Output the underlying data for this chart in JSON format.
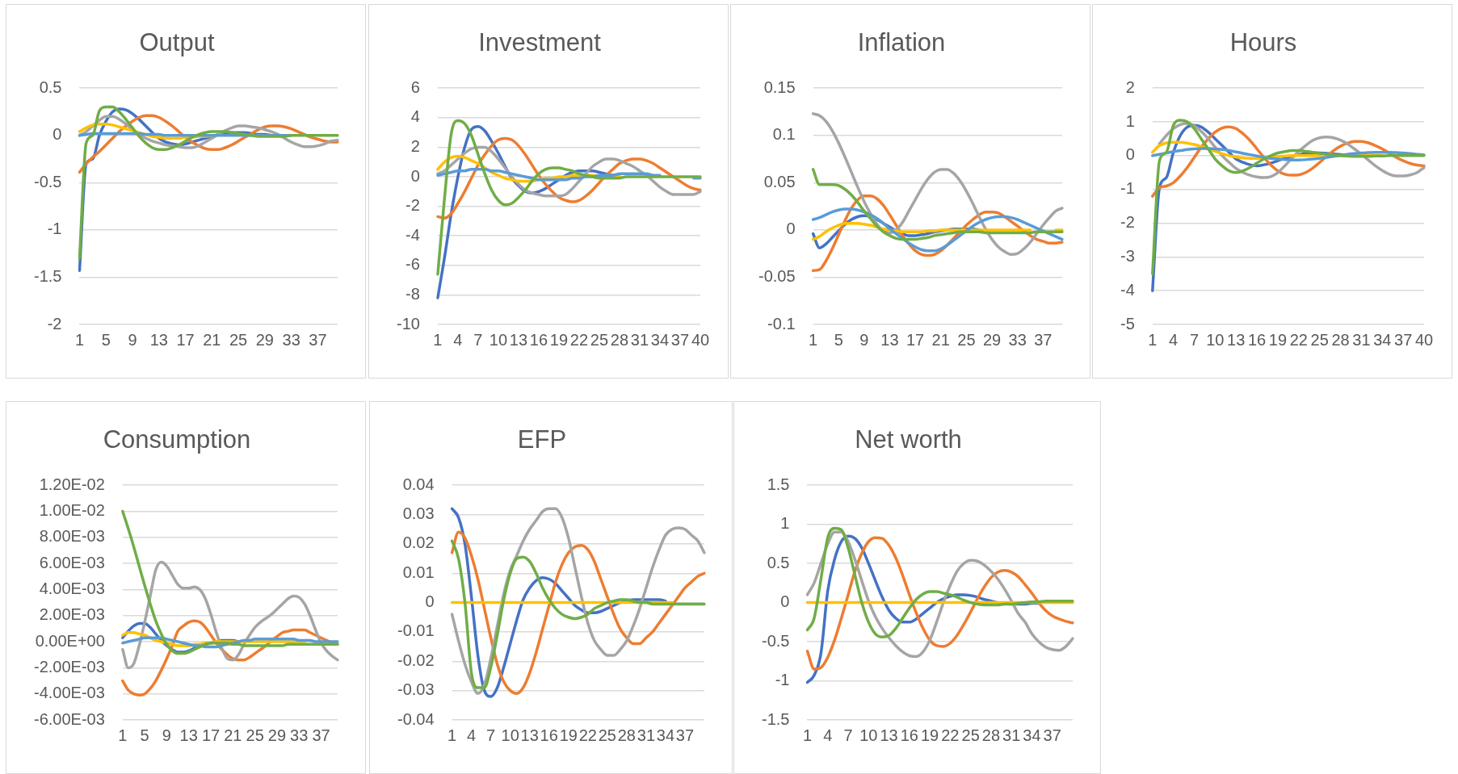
{
  "chart_data": [
    {
      "type": "line",
      "title": "Output",
      "categories": [
        "1",
        null,
        null,
        null,
        "5",
        null,
        null,
        null,
        "9",
        null,
        null,
        null,
        "13",
        null,
        null,
        null,
        "17",
        null,
        null,
        null,
        "21",
        null,
        null,
        null,
        "25",
        null,
        null,
        null,
        "29",
        null,
        null,
        null,
        "33",
        null,
        null,
        null,
        "37",
        null,
        null,
        null
      ],
      "ylim": [
        -2,
        0.5
      ],
      "yticks": [
        -2,
        -1.5,
        -1,
        -0.5,
        0,
        0.5
      ],
      "grid": "y",
      "marker": "none",
      "series": [
        {
          "color": "#4472c4",
          "values": [
            -1.43,
            -0.3,
            -0.25,
            0,
            0.15,
            0.25,
            0.28,
            0.27,
            0.23,
            0.17,
            0.1,
            0.03,
            -0.03,
            -0.07,
            -0.09,
            -0.1,
            -0.09,
            -0.07,
            -0.05,
            -0.03,
            -0.01,
            0.01,
            0.02,
            0.03,
            0.03,
            0.03,
            0.02,
            0.01,
            0.01,
            0,
            null,
            null,
            null,
            null,
            null,
            null,
            null,
            null,
            null,
            null
          ]
        },
        {
          "color": "#ed7d31",
          "values": [
            -0.39,
            -0.3,
            -0.23,
            -0.17,
            -0.1,
            -0.03,
            0.04,
            0.1,
            0.15,
            0.19,
            0.21,
            0.21,
            0.19,
            0.15,
            0.1,
            0.04,
            -0.02,
            -0.07,
            -0.11,
            -0.14,
            -0.15,
            -0.15,
            -0.13,
            -0.1,
            -0.06,
            -0.02,
            0.02,
            0.06,
            0.09,
            0.1,
            0.1,
            0.09,
            0.07,
            0.04,
            0.01,
            -0.02,
            -0.04,
            -0.06,
            -0.07,
            -0.07
          ]
        },
        {
          "color": "#a5a5a5",
          "values": [
            0,
            0.04,
            0.1,
            0.16,
            0.2,
            0.2,
            0.17,
            0.12,
            0.06,
            0.01,
            -0.03,
            -0.06,
            -0.08,
            -0.1,
            -0.11,
            -0.12,
            -0.13,
            -0.13,
            -0.11,
            -0.07,
            -0.03,
            0.01,
            0.05,
            0.08,
            0.1,
            0.1,
            0.09,
            0.08,
            0.06,
            0.04,
            0.01,
            -0.03,
            -0.07,
            -0.1,
            -0.12,
            -0.12,
            -0.11,
            -0.09,
            -0.06,
            -0.05
          ]
        },
        {
          "color": "#ffc000",
          "values": [
            0.04,
            0.08,
            0.11,
            0.12,
            0.12,
            0.11,
            0.09,
            0.07,
            0.05,
            0.03,
            0.01,
            -0.01,
            -0.02,
            -0.03,
            -0.03,
            -0.03,
            -0.02,
            -0.02,
            -0.01,
            -0.01,
            0,
            null,
            null,
            null,
            null,
            null,
            null,
            null,
            null,
            null,
            null,
            null,
            null,
            null,
            null,
            null,
            null,
            null,
            null,
            null
          ]
        },
        {
          "color": "#5b9bd5",
          "values": [
            0,
            0.01,
            0.02,
            0.02,
            0.02,
            0.02,
            0.02,
            0.02,
            0.02,
            0.02,
            0.01,
            0.01,
            0.01,
            0,
            0,
            0,
            0,
            0,
            0,
            0,
            0,
            0,
            0,
            0,
            0,
            0,
            0,
            0,
            0,
            0,
            0,
            0,
            0,
            null,
            null,
            null,
            null,
            null,
            null,
            null
          ]
        },
        {
          "color": "#70ad47",
          "values": [
            -1.3,
            -0.08,
            0,
            0.26,
            0.3,
            0.3,
            0.25,
            0.17,
            0.08,
            -0.01,
            -0.08,
            -0.13,
            -0.15,
            -0.15,
            -0.13,
            -0.1,
            -0.06,
            -0.02,
            0.01,
            0.03,
            0.04,
            0.04,
            0.04,
            0.03,
            0.02,
            0.01,
            0,
            -0.01,
            -0.01,
            -0.01,
            -0.01,
            -0.01,
            0,
            0,
            0,
            0,
            0,
            0,
            0,
            0
          ]
        }
      ]
    },
    {
      "type": "line",
      "title": "Investment",
      "categories": [
        "1",
        null,
        null,
        "4",
        null,
        null,
        "7",
        null,
        null,
        "10",
        null,
        null,
        "13",
        null,
        null,
        "16",
        null,
        null,
        "19",
        null,
        null,
        "22",
        null,
        null,
        "25",
        null,
        null,
        "28",
        null,
        null,
        "31",
        null,
        null,
        "34",
        null,
        null,
        "37",
        null,
        null,
        "40"
      ],
      "ylim": [
        -10,
        6
      ],
      "yticks": [
        -10,
        -8,
        -6,
        -4,
        -2,
        0,
        2,
        4,
        6
      ],
      "grid": "y",
      "marker": "none",
      "series": [
        {
          "color": "#4472c4",
          "values": [
            -8.2,
            -5.5,
            -2.5,
            0,
            2,
            3.2,
            3.4,
            3.1,
            2.4,
            1.6,
            0.7,
            -0.1,
            -0.6,
            -1,
            -1.1,
            -1,
            -0.8,
            -0.5,
            -0.2,
            0.1,
            0.3,
            0.4,
            0.4,
            0.4,
            0.3,
            0.2,
            0.1,
            0,
            null,
            null,
            null,
            null,
            null,
            null,
            null,
            null,
            null,
            null,
            null,
            null
          ]
        },
        {
          "color": "#ed7d31",
          "values": [
            -2.7,
            -2.8,
            -2.5,
            -1.8,
            -1,
            -0.1,
            0.8,
            1.5,
            2.1,
            2.5,
            2.6,
            2.5,
            2.1,
            1.5,
            0.8,
            0.1,
            -0.5,
            -1,
            -1.4,
            -1.6,
            -1.7,
            -1.6,
            -1.3,
            -0.9,
            -0.4,
            0.1,
            0.5,
            0.9,
            1.1,
            1.2,
            1.2,
            1.1,
            0.9,
            0.6,
            0.3,
            0,
            -0.3,
            -0.6,
            -0.8,
            -0.9
          ]
        },
        {
          "color": "#a5a5a5",
          "values": [
            0.2,
            0.4,
            0.8,
            1.2,
            1.6,
            1.9,
            2,
            2,
            1.7,
            1.2,
            0.6,
            0,
            -0.5,
            -0.9,
            -1.1,
            -1.2,
            -1.3,
            -1.3,
            -1.3,
            -1.2,
            -0.8,
            -0.3,
            0.2,
            0.7,
            1,
            1.2,
            1.2,
            1.1,
            0.9,
            0.7,
            0.4,
            0.1,
            -0.3,
            -0.7,
            -1,
            -1.2,
            -1.2,
            -1.2,
            -1.2,
            -1
          ]
        },
        {
          "color": "#ffc000",
          "values": [
            0.5,
            1,
            1.3,
            1.4,
            1.3,
            1.1,
            0.9,
            0.6,
            0.3,
            0.1,
            -0.1,
            -0.2,
            -0.3,
            -0.3,
            -0.3,
            -0.2,
            -0.1,
            -0.1,
            0,
            0,
            0.1,
            0.1,
            0.1,
            0.1,
            0,
            0,
            0,
            0,
            null,
            null,
            null,
            null,
            null,
            null,
            null,
            null,
            null,
            null,
            null,
            null
          ]
        },
        {
          "color": "#5b9bd5",
          "values": [
            0.1,
            0.2,
            0.3,
            0.4,
            0.4,
            0.5,
            0.5,
            0.5,
            0.4,
            0.4,
            0.3,
            0.2,
            0.1,
            0,
            -0.1,
            -0.2,
            -0.2,
            -0.2,
            -0.2,
            -0.2,
            -0.1,
            -0.1,
            0,
            0,
            0.1,
            0.1,
            0.1,
            0.2,
            0.2,
            0.2,
            0.2,
            0.2,
            0.1,
            0.1,
            null,
            null,
            null,
            null,
            -0.1,
            -0.1
          ]
        },
        {
          "color": "#70ad47",
          "values": [
            -6.6,
            -1.5,
            2.9,
            3.8,
            3.6,
            2.8,
            1.5,
            0.2,
            -0.9,
            -1.6,
            -1.9,
            -1.8,
            -1.4,
            -0.9,
            -0.3,
            0.2,
            0.5,
            0.6,
            0.6,
            0.5,
            0.4,
            0.2,
            0.1,
            0,
            -0.1,
            -0.1,
            -0.1,
            -0.1,
            0,
            0,
            0,
            0,
            0,
            0,
            0,
            0,
            0,
            0,
            0,
            0
          ]
        }
      ]
    },
    {
      "type": "line",
      "title": "Inflation",
      "categories": [
        "1",
        null,
        null,
        null,
        "5",
        null,
        null,
        null,
        "9",
        null,
        null,
        null,
        "13",
        null,
        null,
        null,
        "17",
        null,
        null,
        null,
        "21",
        null,
        null,
        null,
        "25",
        null,
        null,
        null,
        "29",
        null,
        null,
        null,
        "33",
        null,
        null,
        null,
        "37",
        null,
        null,
        null
      ],
      "ylim": [
        -0.1,
        0.15
      ],
      "yticks": [
        -0.1,
        -0.05,
        0,
        0.05,
        0.1,
        0.15
      ],
      "grid": "y",
      "marker": "none",
      "series": [
        {
          "color": "#4472c4",
          "values": [
            -0.004,
            -0.019,
            -0.015,
            -0.008,
            -0.001,
            0.006,
            0.011,
            0.014,
            0.015,
            0.014,
            0.011,
            0.007,
            0.003,
            -0.001,
            -0.004,
            -0.006,
            -0.006,
            -0.005,
            -0.004,
            -0.002,
            -0.001,
            0,
            0.001,
            0.001,
            0.001,
            0.001,
            0,
            null,
            null,
            null,
            null,
            null,
            null,
            null,
            null,
            null,
            null,
            null,
            null,
            null
          ]
        },
        {
          "color": "#ed7d31",
          "values": [
            -0.043,
            -0.042,
            -0.033,
            -0.02,
            -0.005,
            0.01,
            0.023,
            0.032,
            0.036,
            0.036,
            0.033,
            0.026,
            0.016,
            0.005,
            -0.006,
            -0.015,
            -0.022,
            -0.026,
            -0.027,
            -0.026,
            -0.022,
            -0.016,
            -0.009,
            -0.002,
            0.005,
            0.011,
            0.016,
            0.019,
            0.019,
            0.018,
            0.014,
            0.009,
            0.004,
            -0.001,
            -0.006,
            -0.01,
            -0.012,
            -0.014,
            -0.014,
            -0.013
          ]
        },
        {
          "color": "#a5a5a5",
          "values": [
            0.123,
            0.121,
            0.115,
            0.105,
            0.092,
            0.077,
            0.061,
            0.045,
            0.03,
            0.017,
            0.006,
            -0.001,
            -0.003,
            0,
            0.008,
            0.02,
            0.032,
            0.044,
            0.054,
            0.061,
            0.064,
            0.064,
            0.06,
            0.052,
            0.041,
            0.028,
            0.014,
            0.001,
            -0.01,
            -0.018,
            -0.023,
            -0.026,
            -0.025,
            -0.02,
            -0.013,
            -0.004,
            0.005,
            0.013,
            0.02,
            0.023
          ]
        },
        {
          "color": "#ffc000",
          "values": [
            -0.01,
            -0.007,
            -0.002,
            0.002,
            0.005,
            0.007,
            0.007,
            0.007,
            0.006,
            0.005,
            0.003,
            0.001,
            0,
            -0.001,
            -0.002,
            -0.002,
            -0.002,
            -0.002,
            -0.001,
            -0.001,
            0,
            0,
            0,
            0,
            0,
            0,
            0,
            0,
            0,
            0,
            0,
            0,
            0,
            0,
            0,
            null,
            null,
            null,
            0,
            0
          ]
        },
        {
          "color": "#5b9bd5",
          "values": [
            0.011,
            0.013,
            0.016,
            0.019,
            0.021,
            0.022,
            0.022,
            0.021,
            0.019,
            0.016,
            0.012,
            0.007,
            0.001,
            -0.004,
            -0.009,
            -0.014,
            -0.018,
            -0.021,
            -0.022,
            -0.022,
            -0.02,
            -0.016,
            -0.011,
            -0.006,
            -0.001,
            0.004,
            0.008,
            0.011,
            0.013,
            0.014,
            0.014,
            0.013,
            0.011,
            0.008,
            0.005,
            0.002,
            -0.001,
            -0.004,
            -0.007,
            -0.01
          ]
        },
        {
          "color": "#70ad47",
          "values": [
            0.064,
            0.048,
            0.048,
            0.048,
            0.047,
            0.043,
            0.037,
            0.029,
            0.02,
            0.012,
            0.004,
            -0.002,
            -0.006,
            -0.009,
            -0.01,
            -0.01,
            -0.01,
            -0.009,
            -0.008,
            -0.006,
            -0.005,
            -0.004,
            -0.003,
            -0.002,
            -0.002,
            -0.002,
            -0.002,
            -0.003,
            -0.003,
            -0.003,
            -0.003,
            -0.003,
            -0.003,
            -0.003,
            -0.003,
            -0.002,
            -0.002,
            -0.002,
            -0.002,
            -0.002
          ]
        }
      ]
    },
    {
      "type": "line",
      "title": "Hours",
      "categories": [
        "1",
        null,
        null,
        "4",
        null,
        null,
        "7",
        null,
        null,
        "10",
        null,
        null,
        "13",
        null,
        null,
        "16",
        null,
        null,
        "19",
        null,
        null,
        "22",
        null,
        null,
        "25",
        null,
        null,
        "28",
        null,
        null,
        "31",
        null,
        null,
        "34",
        null,
        null,
        "37",
        null,
        null,
        "40"
      ],
      "ylim": [
        -5,
        2
      ],
      "yticks": [
        -5,
        -4,
        -3,
        -2,
        -1,
        0,
        1,
        2
      ],
      "grid": "y",
      "marker": "none",
      "series": [
        {
          "color": "#4472c4",
          "values": [
            -4,
            -0.95,
            -0.65,
            0.1,
            0.6,
            0.85,
            0.9,
            0.85,
            0.7,
            0.5,
            0.3,
            0.1,
            -0.1,
            -0.2,
            -0.27,
            -0.3,
            -0.27,
            -0.22,
            -0.15,
            -0.08,
            -0.02,
            0.03,
            0.06,
            0.08,
            0.08,
            0.07,
            0.05,
            0.03,
            0.02,
            0.01,
            0,
            null,
            null,
            null,
            null,
            null,
            null,
            null,
            null,
            null
          ]
        },
        {
          "color": "#ed7d31",
          "values": [
            -1.2,
            -0.95,
            -0.9,
            -0.8,
            -0.6,
            -0.35,
            -0.05,
            0.25,
            0.5,
            0.7,
            0.82,
            0.85,
            0.8,
            0.65,
            0.45,
            0.2,
            -0.05,
            -0.28,
            -0.45,
            -0.55,
            -0.58,
            -0.57,
            -0.5,
            -0.37,
            -0.2,
            -0.02,
            0.15,
            0.28,
            0.37,
            0.42,
            0.42,
            0.38,
            0.3,
            0.2,
            0.08,
            -0.05,
            -0.15,
            -0.23,
            -0.28,
            -0.3
          ]
        },
        {
          "color": "#a5a5a5",
          "values": [
            null,
            0.35,
            0.6,
            0.8,
            0.92,
            0.95,
            0.88,
            0.72,
            0.5,
            0.25,
            0,
            -0.2,
            -0.38,
            -0.5,
            -0.58,
            -0.63,
            -0.65,
            -0.62,
            -0.5,
            -0.3,
            -0.08,
            0.13,
            0.3,
            0.45,
            0.53,
            0.55,
            0.53,
            0.46,
            0.35,
            0.2,
            0.04,
            -0.13,
            -0.3,
            -0.44,
            -0.55,
            -0.6,
            -0.6,
            -0.57,
            -0.5,
            -0.35
          ]
        },
        {
          "color": "#ffc000",
          "values": [
            0.1,
            0.3,
            0.38,
            0.4,
            0.4,
            0.37,
            0.33,
            0.27,
            0.2,
            0.13,
            0.06,
            0,
            -0.04,
            -0.07,
            -0.08,
            -0.08,
            -0.07,
            -0.05,
            -0.03,
            -0.01,
            0,
            0.01,
            0,
            0,
            0,
            0,
            0,
            0,
            0,
            0,
            0,
            0,
            0,
            0,
            null,
            null,
            null,
            null,
            null,
            null
          ]
        },
        {
          "color": "#5b9bd5",
          "values": [
            0,
            0.04,
            0.08,
            0.12,
            0.15,
            0.18,
            0.2,
            0.21,
            0.21,
            0.2,
            0.18,
            0.15,
            0.11,
            0.07,
            0.03,
            -0.01,
            -0.05,
            -0.08,
            -0.1,
            -0.12,
            -0.13,
            -0.13,
            -0.12,
            -0.1,
            -0.08,
            -0.05,
            -0.02,
            0.01,
            0.04,
            0.06,
            0.08,
            0.09,
            0.1,
            0.1,
            0.1,
            0.09,
            0.08,
            0.06,
            0.04,
            0.02
          ]
        },
        {
          "color": "#70ad47",
          "values": [
            -3.5,
            -0.15,
            0.1,
            0.9,
            1.05,
            1,
            0.8,
            0.5,
            0.2,
            -0.1,
            -0.3,
            -0.45,
            -0.5,
            -0.45,
            -0.35,
            -0.22,
            -0.1,
            0,
            0.08,
            0.12,
            0.15,
            0.15,
            0.13,
            0.1,
            0.07,
            0.04,
            0.02,
            0,
            -0.01,
            -0.02,
            -0.02,
            -0.02,
            -0.01,
            -0.01,
            0,
            0,
            0,
            0,
            0,
            0
          ]
        }
      ]
    },
    {
      "type": "line",
      "title": "Consumption",
      "categories": [
        "1",
        null,
        null,
        null,
        "5",
        null,
        null,
        null,
        "9",
        null,
        null,
        null,
        "13",
        null,
        null,
        null,
        "17",
        null,
        null,
        null,
        "21",
        null,
        null,
        null,
        "25",
        null,
        null,
        null,
        "29",
        null,
        null,
        null,
        "33",
        null,
        null,
        null,
        "37",
        null,
        null,
        null
      ],
      "ylim": [
        -0.006,
        0.012
      ],
      "yticks": [
        {
          "value": -0.006,
          "label": "-6.00E-03"
        },
        {
          "value": -0.004,
          "label": "-4.00E-03"
        },
        {
          "value": -0.002,
          "label": "-2.00E-03"
        },
        {
          "value": 0,
          "label": "0.00E+00"
        },
        {
          "value": 0.002,
          "label": "2.00E-03"
        },
        {
          "value": 0.004,
          "label": "4.00E-03"
        },
        {
          "value": 0.006,
          "label": "6.00E-03"
        },
        {
          "value": 0.008,
          "label": "8.00E-03"
        },
        {
          "value": 0.01,
          "label": "1.00E-02"
        },
        {
          "value": 0.012,
          "label": "1.20E-02"
        }
      ],
      "grid": "y",
      "marker": "none",
      "series": [
        {
          "color": "#4472c4",
          "values": [
            0.0003,
            0.0008,
            0.0012,
            0.0014,
            0.0014,
            0.0011,
            0.0006,
            0.0001,
            -0.0003,
            -0.0006,
            -0.0008,
            -0.0008,
            -0.0007,
            -0.0005,
            -0.0003,
            -0.0002,
            -0.0001,
            0,
            0.0001,
            0.0001,
            0.0001,
            0,
            null,
            null,
            null,
            null,
            null,
            null,
            null,
            null,
            null,
            null,
            null,
            null,
            null,
            null,
            null,
            null,
            null,
            null
          ]
        },
        {
          "color": "#ed7d31",
          "values": [
            -0.003,
            -0.0037,
            -0.004,
            -0.0041,
            -0.004,
            -0.0036,
            -0.003,
            -0.0022,
            -0.0013,
            -0.0003,
            0.0008,
            0.0012,
            0.0015,
            0.0016,
            0.0015,
            0.0011,
            0.0005,
            -0.0001,
            -0.0006,
            -0.001,
            -0.0013,
            -0.0014,
            -0.0014,
            -0.0012,
            -0.0009,
            -0.0006,
            -0.0003,
            0.0001,
            0.0004,
            0.0007,
            0.0008,
            0.0009,
            0.0009,
            0.0009,
            0.0007,
            0.0005,
            0.0003,
            0.0001,
            -0.0001,
            -0.0002
          ]
        },
        {
          "color": "#a5a5a5",
          "values": [
            -0.0006,
            -0.002,
            -0.0017,
            -0.0003,
            0.0015,
            0.0035,
            0.0055,
            0.0061,
            0.0058,
            0.0051,
            0.0044,
            0.0041,
            0.0041,
            0.0042,
            0.004,
            0.0033,
            0.0021,
            0.0007,
            -0.0005,
            -0.0013,
            -0.0014,
            -0.001,
            -0.0002,
            0.0005,
            0.0011,
            0.0015,
            0.0018,
            0.0021,
            0.0025,
            0.0029,
            0.0033,
            0.0035,
            0.0034,
            0.0029,
            0.002,
            0.0009,
            -0.0001,
            -0.0007,
            -0.0011,
            -0.0014
          ]
        },
        {
          "color": "#ffc000",
          "values": [
            0.0005,
            0.0007,
            0.0007,
            0.0006,
            0.0005,
            0.0003,
            0.0001,
            0,
            -0.0001,
            -0.0002,
            -0.0003,
            -0.0003,
            -0.0003,
            -0.0002,
            -0.0002,
            -0.0001,
            -0.0001,
            0,
            0,
            0,
            0,
            0,
            0,
            0,
            0,
            0,
            0,
            0,
            0,
            0,
            0,
            0,
            0,
            0,
            null,
            null,
            null,
            null,
            null,
            null
          ]
        },
        {
          "color": "#5b9bd5",
          "values": [
            -0.0001,
            0,
            0.0001,
            0.0002,
            0.0003,
            0.0003,
            0.0003,
            0.0003,
            0.0002,
            0.0001,
            0,
            -0.0001,
            -0.0002,
            -0.0003,
            -0.0003,
            -0.0004,
            -0.0004,
            -0.0004,
            -0.0003,
            -0.0002,
            -0.0001,
            0,
            0.0001,
            0.0001,
            0.0002,
            0.0002,
            0.0002,
            0.0002,
            0.0002,
            0.0002,
            0.0002,
            0.0002,
            0.0001,
            0.0001,
            0.0001,
            0,
            0,
            0,
            0,
            0
          ]
        },
        {
          "color": "#70ad47",
          "values": [
            0.01,
            0.0087,
            0.0073,
            0.0058,
            0.0043,
            0.0029,
            0.0016,
            0.0006,
            -0.0002,
            -0.0007,
            -0.0009,
            -0.0009,
            -0.0008,
            -0.0006,
            -0.0004,
            -0.0002,
            -0.0001,
            -0.0001,
            -0.0001,
            -0.0001,
            -0.0002,
            -0.0002,
            -0.0003,
            -0.0003,
            -0.0003,
            -0.0003,
            -0.0003,
            -0.0003,
            -0.0003,
            -0.0003,
            -0.0002,
            -0.0002,
            -0.0002,
            -0.0002,
            -0.0002,
            -0.0002,
            -0.0002,
            -0.0002,
            -0.0002,
            -0.0002
          ]
        }
      ]
    },
    {
      "type": "line",
      "title": "EFP",
      "categories": [
        "1",
        null,
        null,
        "4",
        null,
        null,
        "7",
        null,
        null,
        "10",
        null,
        null,
        "13",
        null,
        null,
        "16",
        null,
        null,
        "19",
        null,
        null,
        "22",
        null,
        null,
        "25",
        null,
        null,
        "28",
        null,
        null,
        "31",
        null,
        null,
        "34",
        null,
        null,
        "37",
        null,
        null,
        null
      ],
      "ylim": [
        -0.04,
        0.04
      ],
      "yticks": [
        -0.04,
        -0.03,
        -0.02,
        -0.01,
        0,
        0.01,
        0.02,
        0.03,
        0.04
      ],
      "grid": "y",
      "marker": "none",
      "series": [
        {
          "color": "#4472c4",
          "values": [
            0.032,
            0.029,
            0.02,
            0.002,
            -0.018,
            -0.03,
            -0.032,
            -0.029,
            -0.022,
            -0.014,
            -0.006,
            0.001,
            0.005,
            0.0075,
            0.0085,
            0.008,
            0.0065,
            0.004,
            0.0015,
            -0.001,
            -0.0025,
            -0.0035,
            -0.0035,
            -0.003,
            -0.002,
            -0.001,
            0,
            0.0005,
            0.001,
            0.001,
            0.001,
            0.001,
            0.001,
            0.0005,
            null,
            null,
            null,
            null,
            null,
            null
          ]
        },
        {
          "color": "#ed7d31",
          "values": [
            0.017,
            0.024,
            0.022,
            0.016,
            0.008,
            -0.002,
            -0.012,
            -0.021,
            -0.027,
            -0.03,
            -0.031,
            -0.029,
            -0.024,
            -0.017,
            -0.009,
            -0.001,
            0.007,
            0.013,
            0.017,
            0.019,
            0.0195,
            0.018,
            0.014,
            0.008,
            0.002,
            -0.004,
            -0.009,
            -0.012,
            -0.014,
            -0.014,
            -0.012,
            -0.01,
            -0.007,
            -0.004,
            -0.001,
            0.002,
            0.005,
            0.007,
            0.009,
            0.01
          ]
        },
        {
          "color": "#a5a5a5",
          "values": [
            -0.004,
            -0.013,
            -0.021,
            -0.027,
            -0.031,
            -0.028,
            -0.019,
            -0.008,
            0.003,
            0.011,
            0.016,
            0.021,
            0.025,
            0.028,
            0.031,
            0.032,
            0.032,
            0.029,
            0.022,
            0.012,
            0.002,
            -0.007,
            -0.013,
            -0.016,
            -0.018,
            -0.018,
            -0.016,
            -0.013,
            -0.008,
            -0.002,
            0.005,
            0.012,
            0.018,
            0.023,
            0.025,
            0.0255,
            0.025,
            0.023,
            0.021,
            0.017
          ]
        },
        {
          "color": "#ffc000",
          "values": [
            0,
            0,
            0,
            0,
            0,
            0,
            0,
            0,
            0,
            0,
            0,
            0,
            0,
            0,
            0,
            0,
            0,
            0,
            0,
            0,
            0,
            0,
            0,
            0,
            0,
            0,
            0,
            0,
            0,
            0,
            0,
            0,
            0,
            0,
            0,
            null,
            null,
            null,
            null,
            null
          ]
        },
        {
          "color": "#70ad47",
          "values": [
            0.021,
            0.015,
            0,
            -0.024,
            -0.029,
            -0.029,
            -0.022,
            -0.011,
            0.001,
            0.01,
            0.015,
            0.0155,
            0.014,
            0.01,
            0.005,
            0.001,
            -0.002,
            -0.004,
            -0.005,
            -0.0055,
            -0.005,
            -0.004,
            -0.002,
            -0.001,
            0,
            0.0005,
            0.001,
            0.001,
            0.0005,
            0,
            0,
            -0.0005,
            -0.0005,
            -0.0005,
            -0.0005,
            -0.0005,
            -0.0005,
            -0.0005,
            -0.0005,
            -0.0005
          ]
        }
      ]
    },
    {
      "type": "line",
      "title": "Net worth",
      "categories": [
        "1",
        null,
        null,
        "4",
        null,
        null,
        "7",
        null,
        null,
        "10",
        null,
        null,
        "13",
        null,
        null,
        "16",
        null,
        null,
        "19",
        null,
        null,
        "22",
        null,
        null,
        "25",
        null,
        null,
        "28",
        null,
        null,
        "31",
        null,
        null,
        "34",
        null,
        null,
        "37",
        null,
        null,
        null
      ],
      "ylim": [
        -1.5,
        1.5
      ],
      "yticks": [
        -1.5,
        -1,
        -0.5,
        0,
        0.5,
        1,
        1.5
      ],
      "grid": "y",
      "marker": "none",
      "series": [
        {
          "color": "#4472c4",
          "values": [
            -1.02,
            -0.93,
            -0.65,
            0.15,
            0.55,
            0.78,
            0.85,
            0.82,
            0.7,
            0.5,
            0.28,
            0.07,
            -0.1,
            -0.2,
            -0.25,
            -0.25,
            -0.21,
            -0.14,
            -0.07,
            0,
            0.05,
            0.08,
            0.1,
            0.1,
            0.09,
            0.07,
            0.04,
            0.02,
            0,
            -0.01,
            -0.02,
            -0.02,
            -0.02,
            -0.01,
            -0.01,
            null,
            null,
            null,
            null,
            null
          ]
        },
        {
          "color": "#ed7d31",
          "values": [
            -0.62,
            -0.85,
            -0.83,
            -0.7,
            -0.48,
            -0.2,
            0.1,
            0.4,
            0.63,
            0.78,
            0.83,
            0.82,
            0.73,
            0.57,
            0.35,
            0.1,
            -0.13,
            -0.33,
            -0.48,
            -0.55,
            -0.56,
            -0.52,
            -0.42,
            -0.28,
            -0.12,
            0.05,
            0.2,
            0.32,
            0.39,
            0.41,
            0.39,
            0.33,
            0.23,
            0.12,
            0,
            -0.1,
            -0.17,
            -0.21,
            -0.24,
            -0.26
          ]
        },
        {
          "color": "#a5a5a5",
          "values": [
            0.1,
            0.25,
            0.5,
            0.75,
            0.9,
            0.9,
            0.78,
            0.55,
            0.28,
            0.02,
            -0.18,
            -0.33,
            -0.45,
            -0.55,
            -0.63,
            -0.68,
            -0.69,
            -0.63,
            -0.48,
            -0.25,
            0,
            0.22,
            0.4,
            0.5,
            0.54,
            0.53,
            0.48,
            0.4,
            0.3,
            0.17,
            0.02,
            -0.14,
            -0.25,
            -0.4,
            -0.5,
            -0.57,
            -0.6,
            -0.61,
            -0.56,
            -0.46
          ]
        },
        {
          "color": "#ffc000",
          "values": [
            0,
            0,
            0,
            0,
            0,
            0,
            0,
            0,
            0,
            0,
            0,
            0,
            0,
            0,
            0,
            0,
            0,
            0,
            0,
            0,
            0,
            0,
            0,
            0,
            0,
            0,
            0,
            0,
            0,
            0,
            0,
            0,
            0,
            0,
            0,
            0,
            0,
            0,
            0,
            0
          ]
        },
        {
          "color": "#70ad47",
          "values": [
            -0.35,
            -0.2,
            0.3,
            0.83,
            0.95,
            0.93,
            0.7,
            0.35,
            0,
            -0.25,
            -0.4,
            -0.44,
            -0.42,
            -0.33,
            -0.2,
            -0.07,
            0.04,
            0.11,
            0.14,
            0.14,
            0.12,
            0.1,
            0.07,
            0.03,
            0,
            -0.02,
            -0.03,
            -0.03,
            -0.03,
            -0.02,
            -0.02,
            -0.01,
            0,
            0.01,
            0.01,
            0.02,
            0.02,
            0.02,
            0.02,
            0.02
          ]
        }
      ]
    }
  ]
}
